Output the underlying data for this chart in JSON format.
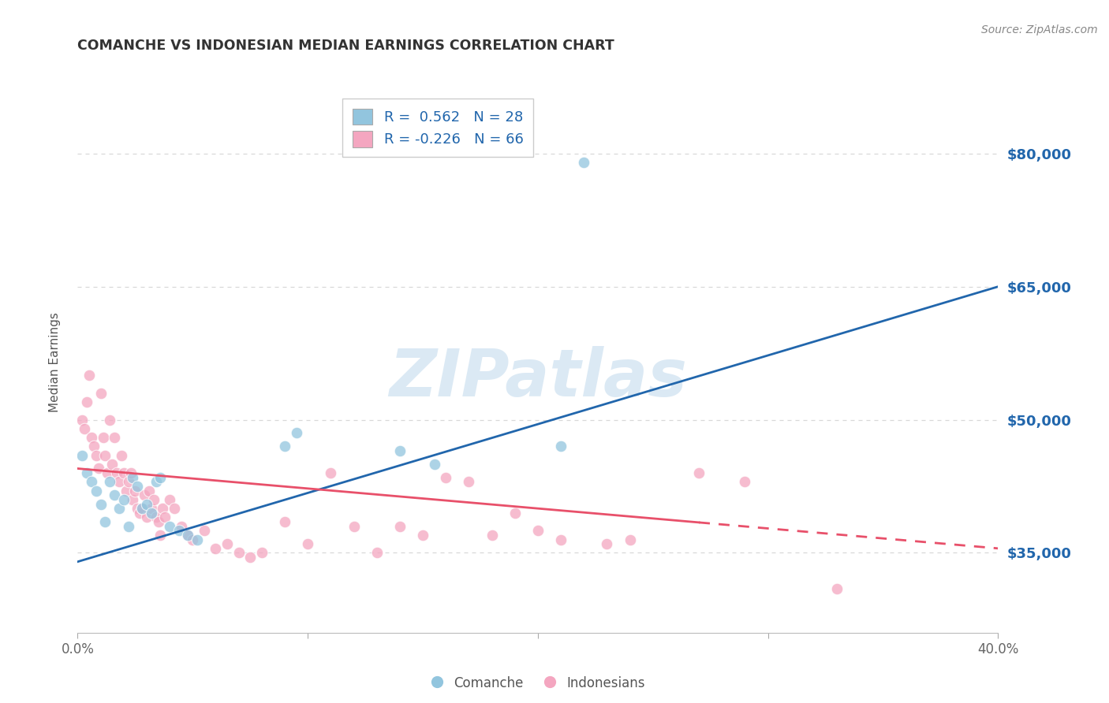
{
  "title": "COMANCHE VS INDONESIAN MEDIAN EARNINGS CORRELATION CHART",
  "source": "Source: ZipAtlas.com",
  "ylabel": "Median Earnings",
  "watermark": "ZIPatlas",
  "legend_comanche_R": "0.562",
  "legend_comanche_N": "28",
  "legend_indonesian_R": "-0.226",
  "legend_indonesian_N": "66",
  "ytick_labels": [
    "$35,000",
    "$50,000",
    "$65,000",
    "$80,000"
  ],
  "ytick_values": [
    35000,
    50000,
    65000,
    80000
  ],
  "xlim": [
    0.0,
    0.4
  ],
  "ylim": [
    26000,
    87000
  ],
  "blue_color": "#92c5de",
  "pink_color": "#f4a6c0",
  "blue_line_color": "#2166ac",
  "pink_line_color": "#e8506a",
  "blue_scatter": [
    [
      0.002,
      46000
    ],
    [
      0.004,
      44000
    ],
    [
      0.006,
      43000
    ],
    [
      0.008,
      42000
    ],
    [
      0.01,
      40500
    ],
    [
      0.012,
      38500
    ],
    [
      0.014,
      43000
    ],
    [
      0.016,
      41500
    ],
    [
      0.018,
      40000
    ],
    [
      0.02,
      41000
    ],
    [
      0.022,
      38000
    ],
    [
      0.024,
      43500
    ],
    [
      0.026,
      42500
    ],
    [
      0.028,
      40000
    ],
    [
      0.03,
      40500
    ],
    [
      0.032,
      39500
    ],
    [
      0.034,
      43000
    ],
    [
      0.036,
      43500
    ],
    [
      0.04,
      38000
    ],
    [
      0.044,
      37500
    ],
    [
      0.048,
      37000
    ],
    [
      0.052,
      36500
    ],
    [
      0.09,
      47000
    ],
    [
      0.095,
      48500
    ],
    [
      0.14,
      46500
    ],
    [
      0.155,
      45000
    ],
    [
      0.21,
      47000
    ],
    [
      0.22,
      79000
    ]
  ],
  "pink_scatter": [
    [
      0.002,
      50000
    ],
    [
      0.003,
      49000
    ],
    [
      0.004,
      52000
    ],
    [
      0.005,
      55000
    ],
    [
      0.006,
      48000
    ],
    [
      0.007,
      47000
    ],
    [
      0.008,
      46000
    ],
    [
      0.009,
      44500
    ],
    [
      0.01,
      53000
    ],
    [
      0.011,
      48000
    ],
    [
      0.012,
      46000
    ],
    [
      0.013,
      44000
    ],
    [
      0.014,
      50000
    ],
    [
      0.015,
      45000
    ],
    [
      0.016,
      48000
    ],
    [
      0.017,
      44000
    ],
    [
      0.018,
      43000
    ],
    [
      0.019,
      46000
    ],
    [
      0.02,
      44000
    ],
    [
      0.021,
      42000
    ],
    [
      0.022,
      43000
    ],
    [
      0.023,
      44000
    ],
    [
      0.024,
      41000
    ],
    [
      0.025,
      42000
    ],
    [
      0.026,
      40000
    ],
    [
      0.027,
      39500
    ],
    [
      0.028,
      40000
    ],
    [
      0.029,
      41500
    ],
    [
      0.03,
      39000
    ],
    [
      0.031,
      42000
    ],
    [
      0.032,
      40000
    ],
    [
      0.033,
      41000
    ],
    [
      0.034,
      39000
    ],
    [
      0.035,
      38500
    ],
    [
      0.036,
      37000
    ],
    [
      0.037,
      40000
    ],
    [
      0.038,
      39000
    ],
    [
      0.04,
      41000
    ],
    [
      0.042,
      40000
    ],
    [
      0.045,
      38000
    ],
    [
      0.048,
      37000
    ],
    [
      0.05,
      36500
    ],
    [
      0.055,
      37500
    ],
    [
      0.06,
      35500
    ],
    [
      0.065,
      36000
    ],
    [
      0.07,
      35000
    ],
    [
      0.075,
      34500
    ],
    [
      0.08,
      35000
    ],
    [
      0.09,
      38500
    ],
    [
      0.1,
      36000
    ],
    [
      0.11,
      44000
    ],
    [
      0.12,
      38000
    ],
    [
      0.13,
      35000
    ],
    [
      0.14,
      38000
    ],
    [
      0.15,
      37000
    ],
    [
      0.16,
      43500
    ],
    [
      0.17,
      43000
    ],
    [
      0.18,
      37000
    ],
    [
      0.19,
      39500
    ],
    [
      0.2,
      37500
    ],
    [
      0.21,
      36500
    ],
    [
      0.23,
      36000
    ],
    [
      0.24,
      36500
    ],
    [
      0.27,
      44000
    ],
    [
      0.29,
      43000
    ],
    [
      0.33,
      31000
    ]
  ],
  "blue_line_x": [
    0.0,
    0.4
  ],
  "blue_line_y": [
    34000,
    65000
  ],
  "pink_line_x": [
    0.0,
    0.4
  ],
  "pink_line_y": [
    44500,
    35500
  ],
  "pink_line_dashed_start": 0.27,
  "grid_color": "#d8d8d8",
  "bg_color": "#ffffff",
  "title_color": "#333333",
  "source_color": "#888888",
  "tick_color": "#666666"
}
